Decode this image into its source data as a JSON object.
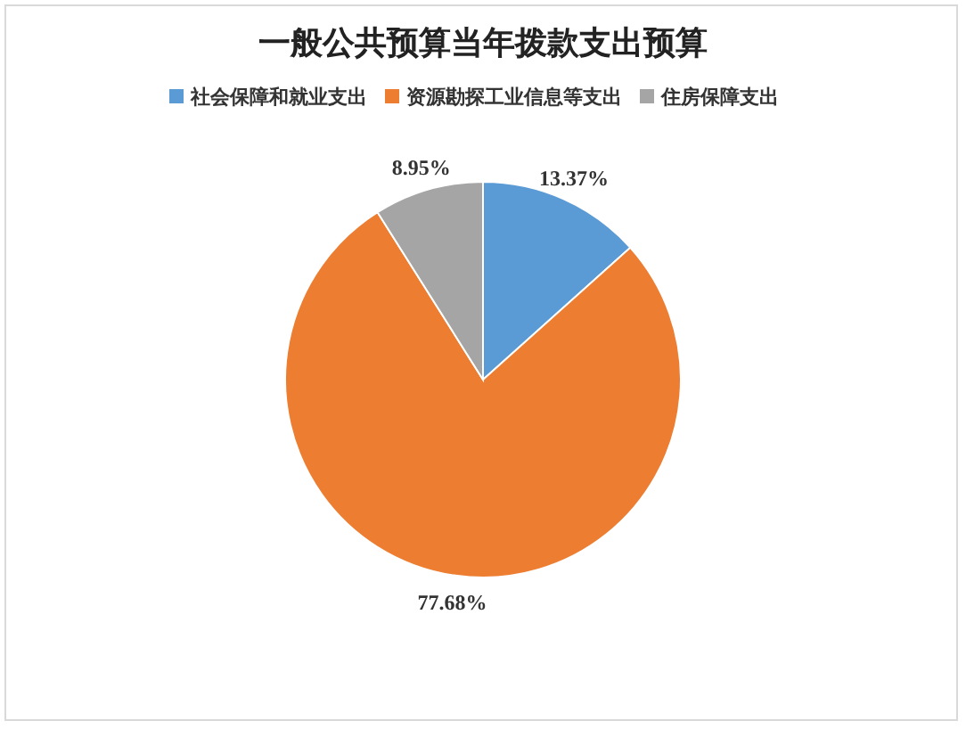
{
  "chart_data": {
    "type": "pie",
    "title": "一般公共预算当年拨款支出预算",
    "categories": [
      "社会保障和就业支出",
      "资源勘探工业信息等支出",
      "住房保障支出"
    ],
    "values": [
      13.37,
      77.68,
      8.95
    ],
    "value_labels": [
      "13.37%",
      "77.68%",
      "8.95%"
    ],
    "colors": [
      "#5b9bd5",
      "#ed7d31",
      "#a5a5a5"
    ],
    "legend": "top"
  }
}
